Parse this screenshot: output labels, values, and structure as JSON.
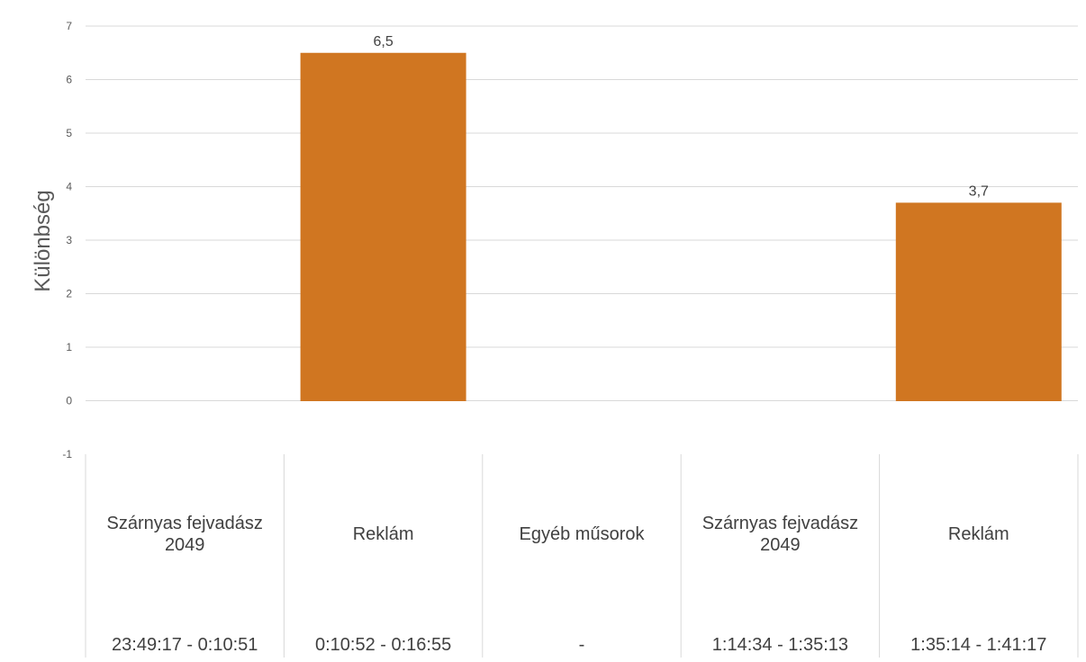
{
  "chart_data": {
    "type": "bar",
    "categories": [
      {
        "label": "Szárnyas fejvadász 2049",
        "time": "23:49:17 - 0:10:51"
      },
      {
        "label": "Reklám",
        "time": "0:10:52 - 0:16:55"
      },
      {
        "label": "Egyéb műsorok",
        "time": "-"
      },
      {
        "label": "Szárnyas fejvadász 2049",
        "time": "1:14:34 - 1:35:13"
      },
      {
        "label": "Reklám",
        "time": "1:35:14 - 1:41:17"
      }
    ],
    "values": [
      null,
      6.5,
      null,
      null,
      3.7
    ],
    "data_labels": [
      "",
      "6,5",
      "",
      "",
      "3,7"
    ],
    "ylabel": "Különbség",
    "ylim": [
      -1,
      7
    ],
    "yticks": [
      "-1",
      "0",
      "1",
      "2",
      "3",
      "4",
      "5",
      "6",
      "7"
    ],
    "grid": true,
    "colors": {
      "bar": "#d07621",
      "grid": "#d9d9d9"
    }
  }
}
